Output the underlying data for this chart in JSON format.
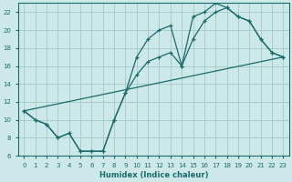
{
  "xlabel": "Humidex (Indice chaleur)",
  "background_color": "#cce8e8",
  "grid_color": "#aacccc",
  "line_color": "#1a6b6b",
  "xlim": [
    -0.5,
    23.5
  ],
  "ylim": [
    6,
    23
  ],
  "xticks": [
    0,
    1,
    2,
    3,
    4,
    5,
    6,
    7,
    8,
    9,
    10,
    11,
    12,
    13,
    14,
    15,
    16,
    17,
    18,
    19,
    20,
    21,
    22,
    23
  ],
  "yticks": [
    6,
    8,
    10,
    12,
    14,
    16,
    18,
    20,
    22
  ],
  "line1_x": [
    0,
    1,
    2,
    3,
    4,
    5,
    6,
    7,
    8,
    9,
    10,
    11,
    12,
    13,
    14,
    15,
    16,
    17,
    18,
    19,
    20,
    21,
    22,
    23
  ],
  "line1_y": [
    11,
    10,
    9.5,
    8,
    8.5,
    6.5,
    6.5,
    6.5,
    10,
    13,
    17,
    19,
    20,
    20.5,
    16,
    21.5,
    22,
    23,
    22.5,
    21.5,
    21,
    19,
    17.5,
    17
  ],
  "line2_x": [
    0,
    1,
    2,
    3,
    4,
    5,
    6,
    7,
    8,
    9,
    10,
    11,
    12,
    13,
    14,
    15,
    16,
    17,
    18,
    19,
    20,
    21,
    22,
    23
  ],
  "line2_y": [
    11,
    10,
    9.5,
    8,
    8.5,
    6.5,
    6.5,
    6.5,
    10,
    13,
    15,
    16.5,
    17,
    17.5,
    16,
    19,
    21,
    22,
    22.5,
    21.5,
    21,
    19,
    17.5,
    17
  ],
  "line3_x": [
    0,
    23
  ],
  "line3_y": [
    11,
    17
  ]
}
